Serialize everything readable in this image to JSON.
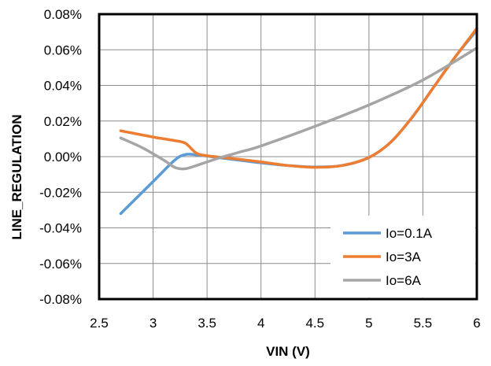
{
  "chart_data": {
    "type": "line",
    "title": "",
    "xlabel": "VIN (V)",
    "ylabel": "LINE_REGULATION",
    "xlim": [
      2.5,
      6
    ],
    "ylim": [
      -0.08,
      0.08
    ],
    "x_ticks": [
      "2.5",
      "3",
      "3.5",
      "4",
      "4.5",
      "5",
      "5.5",
      "6"
    ],
    "y_ticks": [
      "0.08%",
      "0.06%",
      "0.04%",
      "0.02%",
      "0.00%",
      "-0.02%",
      "-0.04%",
      "-0.06%",
      "-0.08%"
    ],
    "grid": true,
    "legend_position": "bottom-right",
    "series": [
      {
        "name": "Io=0.1A",
        "color": "#5b9bd5",
        "x": [
          2.7,
          3.0,
          3.2,
          3.3,
          3.4,
          3.5,
          3.6,
          3.8,
          4.0,
          4.25,
          4.5,
          4.75,
          5.0,
          5.2,
          5.4,
          5.6,
          5.8,
          6.0
        ],
        "y": [
          -0.032,
          -0.014,
          -0.002,
          0.0012,
          0.001,
          0.0003,
          -0.0005,
          -0.002,
          -0.0035,
          -0.005,
          -0.0058,
          -0.005,
          -0.0005,
          0.008,
          0.022,
          0.039,
          0.056,
          0.071
        ]
      },
      {
        "name": "Io=3A",
        "color": "#ed7d31",
        "x": [
          2.7,
          3.0,
          3.2,
          3.3,
          3.4,
          3.5,
          3.6,
          3.8,
          4.0,
          4.25,
          4.5,
          4.75,
          5.0,
          5.2,
          5.4,
          5.6,
          5.8,
          6.0
        ],
        "y": [
          0.0145,
          0.011,
          0.009,
          0.0075,
          0.002,
          0.0005,
          -0.0002,
          -0.0015,
          -0.003,
          -0.005,
          -0.006,
          -0.005,
          -0.0005,
          0.008,
          0.022,
          0.039,
          0.056,
          0.072
        ]
      },
      {
        "name": "Io=6A",
        "color": "#a5a5a5",
        "x": [
          2.7,
          2.9,
          3.1,
          3.2,
          3.3,
          3.45,
          3.6,
          3.8,
          4.0,
          4.5,
          5.0,
          5.5,
          6.0
        ],
        "y": [
          0.0105,
          0.005,
          -0.002,
          -0.006,
          -0.0068,
          -0.004,
          -0.001,
          0.0025,
          0.006,
          0.017,
          0.029,
          0.043,
          0.061
        ]
      }
    ]
  }
}
